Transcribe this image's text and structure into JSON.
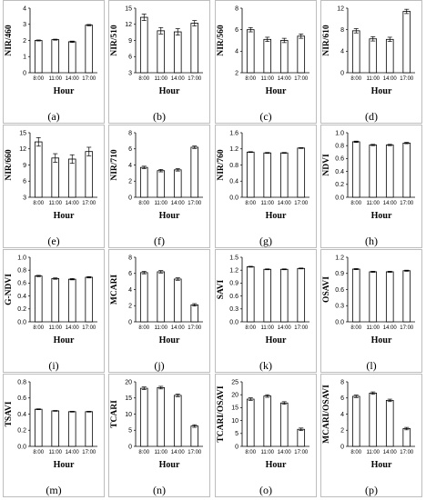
{
  "x_title": "Hour",
  "chart_data": [
    {
      "type": "bar",
      "label": "(a)",
      "ylabel": "NIR/460",
      "categories": [
        "8:00",
        "11:00",
        "14:00",
        "17:00"
      ],
      "values": [
        2.0,
        2.05,
        1.92,
        2.95
      ],
      "errors": [
        0.03,
        0.03,
        0.04,
        0.04
      ],
      "ylim": [
        0,
        4
      ],
      "yticks": [
        0,
        1,
        2,
        3,
        4
      ],
      "ytick_labels": [
        "0",
        "1",
        "2",
        "3",
        "4"
      ]
    },
    {
      "type": "bar",
      "label": "(b)",
      "ylabel": "NIR/510",
      "categories": [
        "8:00",
        "11:00",
        "14:00",
        "17:00"
      ],
      "values": [
        13.3,
        10.8,
        10.6,
        12.2
      ],
      "errors": [
        0.6,
        0.6,
        0.6,
        0.5
      ],
      "ylim": [
        3,
        15
      ],
      "yticks": [
        3,
        6,
        9,
        12,
        15
      ],
      "ytick_labels": [
        "3",
        "6",
        "9",
        "12",
        "15"
      ]
    },
    {
      "type": "bar",
      "label": "(c)",
      "ylabel": "NIR/560",
      "categories": [
        "8:00",
        "11:00",
        "14:00",
        "17:00"
      ],
      "values": [
        6.0,
        5.1,
        5.0,
        5.4
      ],
      "errors": [
        0.2,
        0.2,
        0.2,
        0.2
      ],
      "ylim": [
        2,
        8
      ],
      "yticks": [
        2,
        4,
        6,
        8
      ],
      "ytick_labels": [
        "2",
        "4",
        "6",
        "8"
      ]
    },
    {
      "type": "bar",
      "label": "(d)",
      "ylabel": "NIR/610",
      "categories": [
        "8:00",
        "11:00",
        "14:00",
        "17:00"
      ],
      "values": [
        7.8,
        6.3,
        6.2,
        11.4
      ],
      "errors": [
        0.4,
        0.4,
        0.4,
        0.4
      ],
      "ylim": [
        0,
        12
      ],
      "yticks": [
        0,
        4,
        8,
        12
      ],
      "ytick_labels": [
        "0",
        "4",
        "8",
        "12"
      ]
    },
    {
      "type": "bar",
      "label": "(e)",
      "ylabel": "NIR/660",
      "categories": [
        "8:00",
        "11:00",
        "14:00",
        "17:00"
      ],
      "values": [
        13.3,
        10.3,
        10.1,
        11.5
      ],
      "errors": [
        0.8,
        0.8,
        0.8,
        0.8
      ],
      "ylim": [
        3,
        15
      ],
      "yticks": [
        3,
        6,
        9,
        12,
        15
      ],
      "ytick_labels": [
        "3",
        "6",
        "9",
        "12",
        "15"
      ]
    },
    {
      "type": "bar",
      "label": "(f)",
      "ylabel": "NIR/710",
      "categories": [
        "8:00",
        "11:00",
        "14:00",
        "17:00"
      ],
      "values": [
        3.7,
        3.3,
        3.4,
        6.2
      ],
      "errors": [
        0.15,
        0.15,
        0.15,
        0.15
      ],
      "ylim": [
        0,
        8
      ],
      "yticks": [
        0,
        2,
        4,
        6,
        8
      ],
      "ytick_labels": [
        "0",
        "2",
        "4",
        "6",
        "8"
      ]
    },
    {
      "type": "bar",
      "label": "(g)",
      "ylabel": "NIR/760",
      "categories": [
        "8:00",
        "11:00",
        "14:00",
        "17:00"
      ],
      "values": [
        1.12,
        1.1,
        1.1,
        1.22
      ],
      "errors": [
        0.01,
        0.01,
        0.01,
        0.01
      ],
      "ylim": [
        0,
        1.6
      ],
      "yticks": [
        0,
        0.4,
        0.8,
        1.2,
        1.6
      ],
      "ytick_labels": [
        "0.0",
        "0.4",
        "0.8",
        "1.2",
        "1.6"
      ]
    },
    {
      "type": "bar",
      "label": "(h)",
      "ylabel": "NDVI",
      "categories": [
        "8:00",
        "11:00",
        "14:00",
        "17:00"
      ],
      "values": [
        0.86,
        0.81,
        0.81,
        0.84
      ],
      "errors": [
        0.01,
        0.01,
        0.01,
        0.01
      ],
      "ylim": [
        0,
        1
      ],
      "yticks": [
        0,
        0.2,
        0.4,
        0.6,
        0.8,
        1.0
      ],
      "ytick_labels": [
        "0.0",
        "0.2",
        "0.4",
        "0.6",
        "0.8",
        "1.0"
      ]
    },
    {
      "type": "bar",
      "label": "(i)",
      "ylabel": "G-NDVI",
      "categories": [
        "8:00",
        "11:00",
        "14:00",
        "17:00"
      ],
      "values": [
        0.71,
        0.67,
        0.66,
        0.69
      ],
      "errors": [
        0.01,
        0.01,
        0.01,
        0.01
      ],
      "ylim": [
        0,
        1
      ],
      "yticks": [
        0,
        0.2,
        0.4,
        0.6,
        0.8,
        1.0
      ],
      "ytick_labels": [
        "0.0",
        "0.2",
        "0.4",
        "0.6",
        "0.8",
        "1.0"
      ]
    },
    {
      "type": "bar",
      "label": "(j)",
      "ylabel": "MCARI",
      "categories": [
        "8:00",
        "11:00",
        "14:00",
        "17:00"
      ],
      "values": [
        6.1,
        6.2,
        5.3,
        2.1
      ],
      "errors": [
        0.15,
        0.15,
        0.15,
        0.15
      ],
      "ylim": [
        0,
        8
      ],
      "yticks": [
        0,
        2,
        4,
        6,
        8
      ],
      "ytick_labels": [
        "0",
        "2",
        "4",
        "6",
        "8"
      ]
    },
    {
      "type": "bar",
      "label": "(k)",
      "ylabel": "SAVI",
      "categories": [
        "8:00",
        "11:00",
        "14:00",
        "17:00"
      ],
      "values": [
        1.28,
        1.22,
        1.22,
        1.24
      ],
      "errors": [
        0.01,
        0.01,
        0.01,
        0.01
      ],
      "ylim": [
        0,
        1.5
      ],
      "yticks": [
        0,
        0.3,
        0.6,
        0.9,
        1.2,
        1.5
      ],
      "ytick_labels": [
        "0.0",
        "0.3",
        "0.6",
        "0.9",
        "1.2",
        "1.5"
      ]
    },
    {
      "type": "bar",
      "label": "(l)",
      "ylabel": "OSAVI",
      "categories": [
        "8:00",
        "11:00",
        "14:00",
        "17:00"
      ],
      "values": [
        0.98,
        0.93,
        0.93,
        0.95
      ],
      "errors": [
        0.01,
        0.01,
        0.01,
        0.01
      ],
      "ylim": [
        0,
        1.2
      ],
      "yticks": [
        0,
        0.3,
        0.6,
        0.9,
        1.2
      ],
      "ytick_labels": [
        "0.0",
        "0.3",
        "0.6",
        "0.9",
        "1.2"
      ]
    },
    {
      "type": "bar",
      "label": "(m)",
      "ylabel": "TSAVI",
      "categories": [
        "8:00",
        "11:00",
        "14:00",
        "17:00"
      ],
      "values": [
        0.46,
        0.44,
        0.43,
        0.43
      ],
      "errors": [
        0.005,
        0.005,
        0.005,
        0.005
      ],
      "ylim": [
        0,
        0.8
      ],
      "yticks": [
        0,
        0.2,
        0.4,
        0.6,
        0.8
      ],
      "ytick_labels": [
        "0.0",
        "0.2",
        "0.4",
        "0.6",
        "0.8"
      ]
    },
    {
      "type": "bar",
      "label": "(n)",
      "ylabel": "TCARI",
      "categories": [
        "8:00",
        "11:00",
        "14:00",
        "17:00"
      ],
      "values": [
        18.0,
        18.2,
        15.8,
        6.3
      ],
      "errors": [
        0.4,
        0.4,
        0.4,
        0.4
      ],
      "ylim": [
        0,
        20
      ],
      "yticks": [
        0,
        5,
        10,
        15,
        20
      ],
      "ytick_labels": [
        "0",
        "5",
        "10",
        "15",
        "20"
      ]
    },
    {
      "type": "bar",
      "label": "(o)",
      "ylabel": "TCARI/OSAVI",
      "categories": [
        "8:00",
        "11:00",
        "14:00",
        "17:00"
      ],
      "values": [
        18.3,
        19.5,
        16.8,
        6.6
      ],
      "errors": [
        0.5,
        0.5,
        0.5,
        0.5
      ],
      "ylim": [
        0,
        25
      ],
      "yticks": [
        0,
        5,
        10,
        15,
        20,
        25
      ],
      "ytick_labels": [
        "0",
        "5",
        "10",
        "15",
        "20",
        "25"
      ]
    },
    {
      "type": "bar",
      "label": "(p)",
      "ylabel": "MCARI/OSAVI",
      "categories": [
        "8:00",
        "11:00",
        "14:00",
        "17:00"
      ],
      "values": [
        6.2,
        6.6,
        5.7,
        2.2
      ],
      "errors": [
        0.15,
        0.15,
        0.15,
        0.15
      ],
      "ylim": [
        0,
        8
      ],
      "yticks": [
        0,
        2,
        4,
        6,
        8
      ],
      "ytick_labels": [
        "0",
        "2",
        "4",
        "6",
        "8"
      ]
    }
  ]
}
